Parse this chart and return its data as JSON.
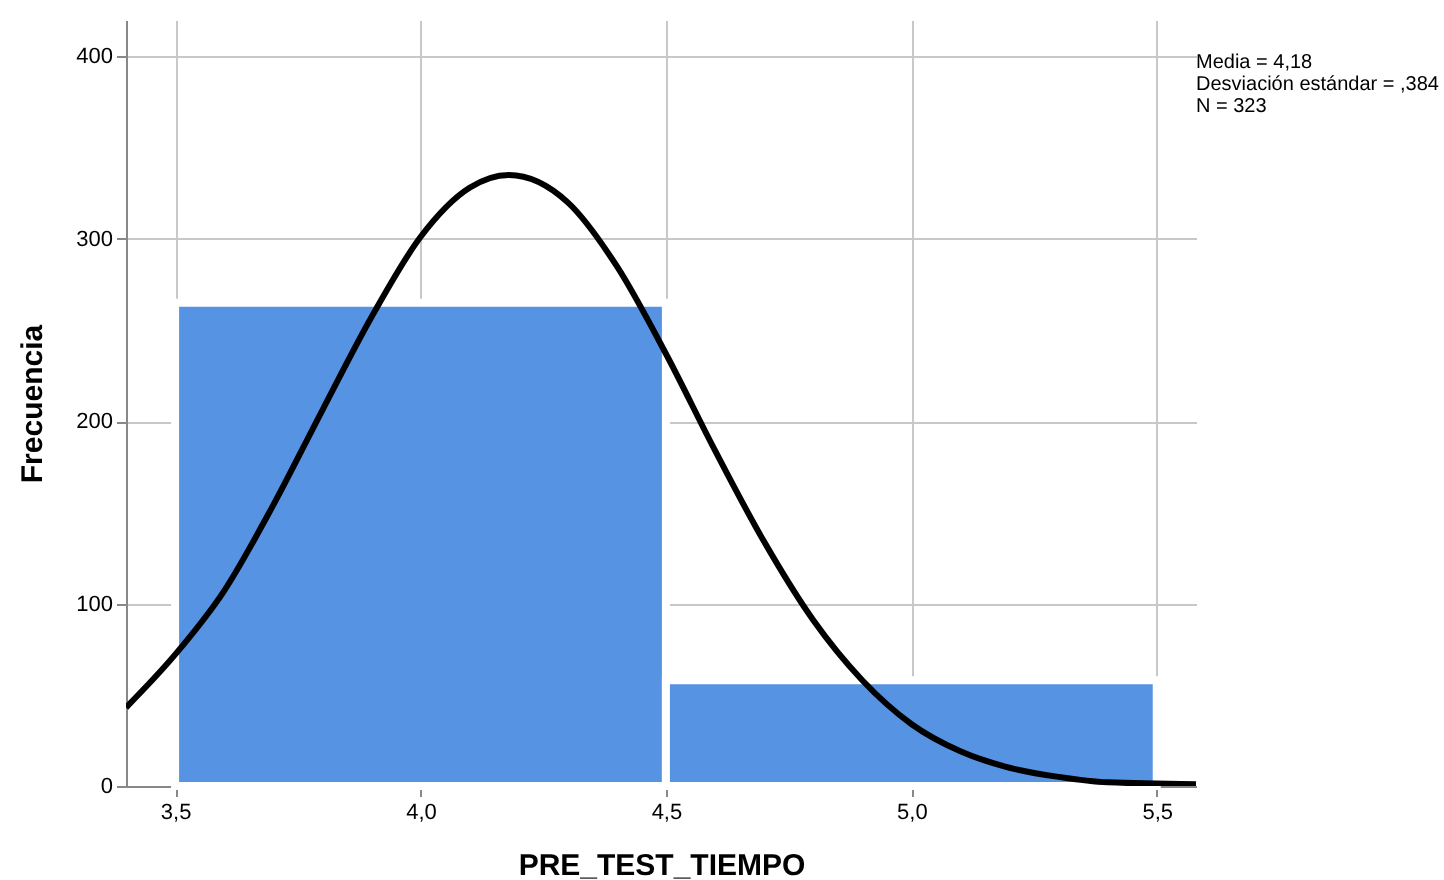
{
  "chart_data": {
    "type": "histogram",
    "xlabel": "PRE_TEST_TIEMPO",
    "ylabel": "Frecuencia",
    "bins": [
      3.5,
      4.5,
      5.5
    ],
    "values": [
      265,
      58
    ],
    "color": "#5793e3",
    "series": [
      {
        "type": "line",
        "color": "#000000",
        "x": [
          3.4,
          3.5,
          3.6,
          3.7,
          3.8,
          3.9,
          4.0,
          4.1,
          4.18,
          4.3,
          4.4,
          4.5,
          4.6,
          4.7,
          4.8,
          4.9,
          5.0,
          5.1,
          5.2,
          5.3,
          5.4,
          5.58
        ],
        "values": [
          43,
          72,
          107,
          154,
          206,
          257,
          301,
          328,
          335,
          320,
          285,
          237,
          184,
          134,
          91,
          58,
          34,
          19,
          10,
          5,
          2,
          1
        ]
      }
    ],
    "xlim": [
      3.4,
      5.58
    ],
    "ylim": [
      0,
      420
    ],
    "xticks": [
      {
        "value": 3.5,
        "label": "3,5"
      },
      {
        "value": 4.0,
        "label": "4,0"
      },
      {
        "value": 4.5,
        "label": "4,5"
      },
      {
        "value": 5.0,
        "label": "5,0"
      },
      {
        "value": 5.5,
        "label": "5,5"
      }
    ],
    "yticks": [
      0,
      100,
      200,
      300,
      400
    ],
    "grid": true,
    "annotations": [
      "Media = 4,18",
      "Desviación estándar = ,384",
      "N = 323"
    ]
  }
}
